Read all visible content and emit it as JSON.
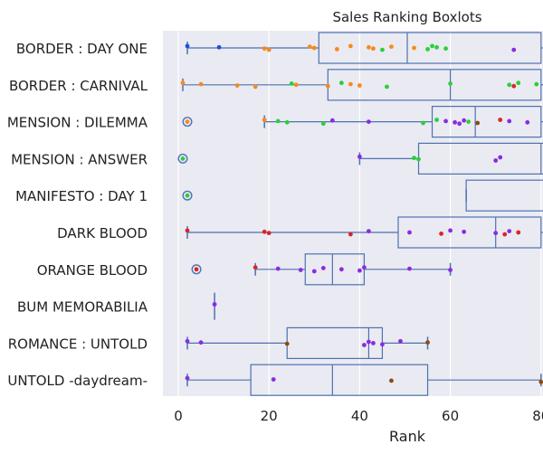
{
  "chart_data": {
    "type": "boxplot",
    "title": "Sales Ranking Boxlots",
    "xlabel": "Rank",
    "ylabel": "",
    "xlim": [
      -4,
      80
    ],
    "xticks": [
      0,
      20,
      40,
      60,
      80
    ],
    "tick_labels": [
      "0",
      "20",
      "40",
      "60",
      "80"
    ],
    "grid": "vertical",
    "categories": [
      "BORDER : DAY ONE",
      "BORDER : CARNIVAL",
      "MENSION : DILEMMA",
      "MENSION : ANSWER",
      "MANIFESTO : DAY 1",
      "DARK BLOOD",
      "ORANGE BLOOD",
      "BUM  MEMORABILIA",
      "ROMANCE : UNTOLD",
      "UNTOLD -daydream-"
    ],
    "boxes": [
      {
        "whisker_low": 2,
        "q1": 31,
        "median": 50.5,
        "q3": 80,
        "whisker_high": 82,
        "fliers": []
      },
      {
        "whisker_low": 1,
        "q1": 33,
        "median": 60,
        "q3": 80,
        "whisker_high": 82,
        "fliers": []
      },
      {
        "whisker_low": 19,
        "q1": 56,
        "median": 65.5,
        "q3": 80,
        "whisker_high": 82,
        "fliers": [
          2
        ]
      },
      {
        "whisker_low": 40,
        "q1": 53,
        "median": 80,
        "q3": 82,
        "whisker_high": 82,
        "fliers": [
          1
        ]
      },
      {
        "whisker_low": 63.5,
        "q1": 63.5,
        "median": 82,
        "q3": 82,
        "whisker_high": 82,
        "fliers": [
          2
        ]
      },
      {
        "whisker_low": 2,
        "q1": 48.5,
        "median": 70,
        "q3": 80,
        "whisker_high": 82,
        "fliers": []
      },
      {
        "whisker_low": 17,
        "q1": 28,
        "median": 34,
        "q3": 41,
        "whisker_high": 60,
        "fliers": [
          4
        ]
      },
      {
        "whisker_low": 8,
        "q1": 8,
        "median": 8,
        "q3": 8,
        "whisker_high": 8,
        "fliers": []
      },
      {
        "whisker_low": 2,
        "q1": 24,
        "median": 42,
        "q3": 45,
        "whisker_high": 55,
        "fliers": []
      },
      {
        "whisker_low": 2,
        "q1": 16,
        "median": 34,
        "q3": 55,
        "whisker_high": 80,
        "fliers": []
      }
    ],
    "points": [
      [
        [
          2,
          "blue"
        ],
        [
          9,
          "blue"
        ],
        [
          19,
          "orange"
        ],
        [
          20,
          "orange"
        ],
        [
          29,
          "orange"
        ],
        [
          30,
          "orange"
        ],
        [
          35,
          "orange"
        ],
        [
          38,
          "orange"
        ],
        [
          42,
          "orange"
        ],
        [
          43,
          "orange"
        ],
        [
          45,
          "green"
        ],
        [
          47,
          "orange"
        ],
        [
          52,
          "orange"
        ],
        [
          55,
          "green"
        ],
        [
          56,
          "green"
        ],
        [
          57,
          "green"
        ],
        [
          59,
          "green"
        ],
        [
          74,
          "purple"
        ]
      ],
      [
        [
          1,
          "orange"
        ],
        [
          5,
          "orange"
        ],
        [
          13,
          "orange"
        ],
        [
          17,
          "orange"
        ],
        [
          25,
          "green"
        ],
        [
          26,
          "orange"
        ],
        [
          33,
          "orange"
        ],
        [
          36,
          "green"
        ],
        [
          38,
          "orange"
        ],
        [
          40,
          "orange"
        ],
        [
          46,
          "green"
        ],
        [
          60,
          "green"
        ],
        [
          73,
          "green"
        ],
        [
          74,
          "red"
        ],
        [
          75,
          "green"
        ],
        [
          79,
          "green"
        ]
      ],
      [
        [
          19,
          "orange"
        ],
        [
          22,
          "green"
        ],
        [
          24,
          "green"
        ],
        [
          32,
          "green"
        ],
        [
          34,
          "purple"
        ],
        [
          42,
          "purple"
        ],
        [
          54,
          "green"
        ],
        [
          57,
          "green"
        ],
        [
          59,
          "purple"
        ],
        [
          61,
          "purple"
        ],
        [
          62,
          "purple"
        ],
        [
          63,
          "purple"
        ],
        [
          64,
          "green"
        ],
        [
          66,
          "brown"
        ],
        [
          71,
          "red"
        ],
        [
          73,
          "purple"
        ],
        [
          77,
          "purple"
        ]
      ],
      [
        [
          40,
          "purple"
        ],
        [
          52,
          "green"
        ],
        [
          53,
          "green"
        ],
        [
          70,
          "purple"
        ],
        [
          71,
          "purple"
        ]
      ],
      [],
      [
        [
          2,
          "red"
        ],
        [
          19,
          "red"
        ],
        [
          20,
          "red"
        ],
        [
          38,
          "red"
        ],
        [
          42,
          "purple"
        ],
        [
          51,
          "purple"
        ],
        [
          58,
          "red"
        ],
        [
          60,
          "purple"
        ],
        [
          63,
          "purple"
        ],
        [
          70,
          "purple"
        ],
        [
          72,
          "red"
        ],
        [
          73,
          "purple"
        ],
        [
          75,
          "red"
        ]
      ],
      [
        [
          17,
          "red"
        ],
        [
          22,
          "purple"
        ],
        [
          27,
          "purple"
        ],
        [
          30,
          "purple"
        ],
        [
          32,
          "purple"
        ],
        [
          36,
          "purple"
        ],
        [
          40,
          "purple"
        ],
        [
          41,
          "purple"
        ],
        [
          51,
          "purple"
        ],
        [
          60,
          "purple"
        ]
      ],
      [
        [
          8,
          "purple"
        ]
      ],
      [
        [
          2,
          "purple"
        ],
        [
          5,
          "purple"
        ],
        [
          24,
          "brown"
        ],
        [
          41,
          "purple"
        ],
        [
          42,
          "purple"
        ],
        [
          43,
          "purple"
        ],
        [
          45,
          "purple"
        ],
        [
          49,
          "purple"
        ],
        [
          55,
          "brown"
        ]
      ],
      [
        [
          2,
          "purple"
        ],
        [
          21,
          "purple"
        ],
        [
          47,
          "brown"
        ],
        [
          80,
          "brown"
        ]
      ]
    ],
    "colors": {
      "background": "#eaeaf2",
      "box": "#4c72b0",
      "grid": "#ffffff",
      "blue": "#1f4fd8",
      "orange": "#f58a1f",
      "green": "#2bcf3a",
      "red": "#d62728",
      "purple": "#8a2be2",
      "brown": "#8c4a12"
    }
  }
}
